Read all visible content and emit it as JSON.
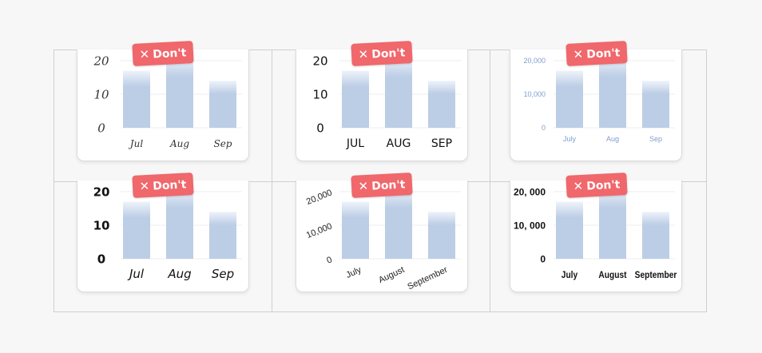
{
  "badge": {
    "icon": "close-icon",
    "symbol": "✕",
    "label": "Don't"
  },
  "colors": {
    "bar": "#bccde6",
    "bar_top": "#eef3fa",
    "grid": "#ececec",
    "badge": "#f0676c",
    "tick_blue": "#7f9fd0",
    "tick_dark": "#222222"
  },
  "chart_data": [
    {
      "type": "bar",
      "ylim": [
        0,
        20
      ],
      "categories": [
        "Jul",
        "Aug",
        "Sep"
      ],
      "values": [
        17,
        21,
        14
      ],
      "yticks": [
        "0",
        "10",
        "20"
      ],
      "tick_style": "script"
    },
    {
      "type": "bar",
      "ylim": [
        0,
        20
      ],
      "categories": [
        "JUL",
        "AUG",
        "SEP"
      ],
      "values": [
        17,
        21,
        14
      ],
      "yticks": [
        "0",
        "10",
        "20"
      ],
      "tick_style": "caps"
    },
    {
      "type": "bar",
      "ylim": [
        0,
        20000
      ],
      "categories": [
        "July",
        "Aug",
        "Sep"
      ],
      "values": [
        17000,
        21000,
        14000
      ],
      "yticks": [
        "0",
        "10,000",
        "20,000"
      ],
      "tick_style": "light-blue"
    },
    {
      "type": "bar",
      "ylim": [
        0,
        20
      ],
      "categories": [
        "Jul",
        "Aug",
        "Sep"
      ],
      "values": [
        17,
        21,
        14
      ],
      "yticks": [
        "0",
        "10",
        "20"
      ],
      "tick_style": "heavy-italic"
    },
    {
      "type": "bar",
      "ylim": [
        0,
        20000
      ],
      "categories": [
        "July",
        "August",
        "September"
      ],
      "values": [
        17000,
        21000,
        14000
      ],
      "yticks": [
        "0",
        "10,000",
        "20,000"
      ],
      "tick_style": "rotated"
    },
    {
      "type": "bar",
      "ylim": [
        0,
        20000
      ],
      "categories": [
        "July",
        "August",
        "September"
      ],
      "values": [
        17000,
        21000,
        14000
      ],
      "yticks": [
        "0",
        "10, 000",
        "20, 000"
      ],
      "tick_style": "condensed"
    }
  ]
}
